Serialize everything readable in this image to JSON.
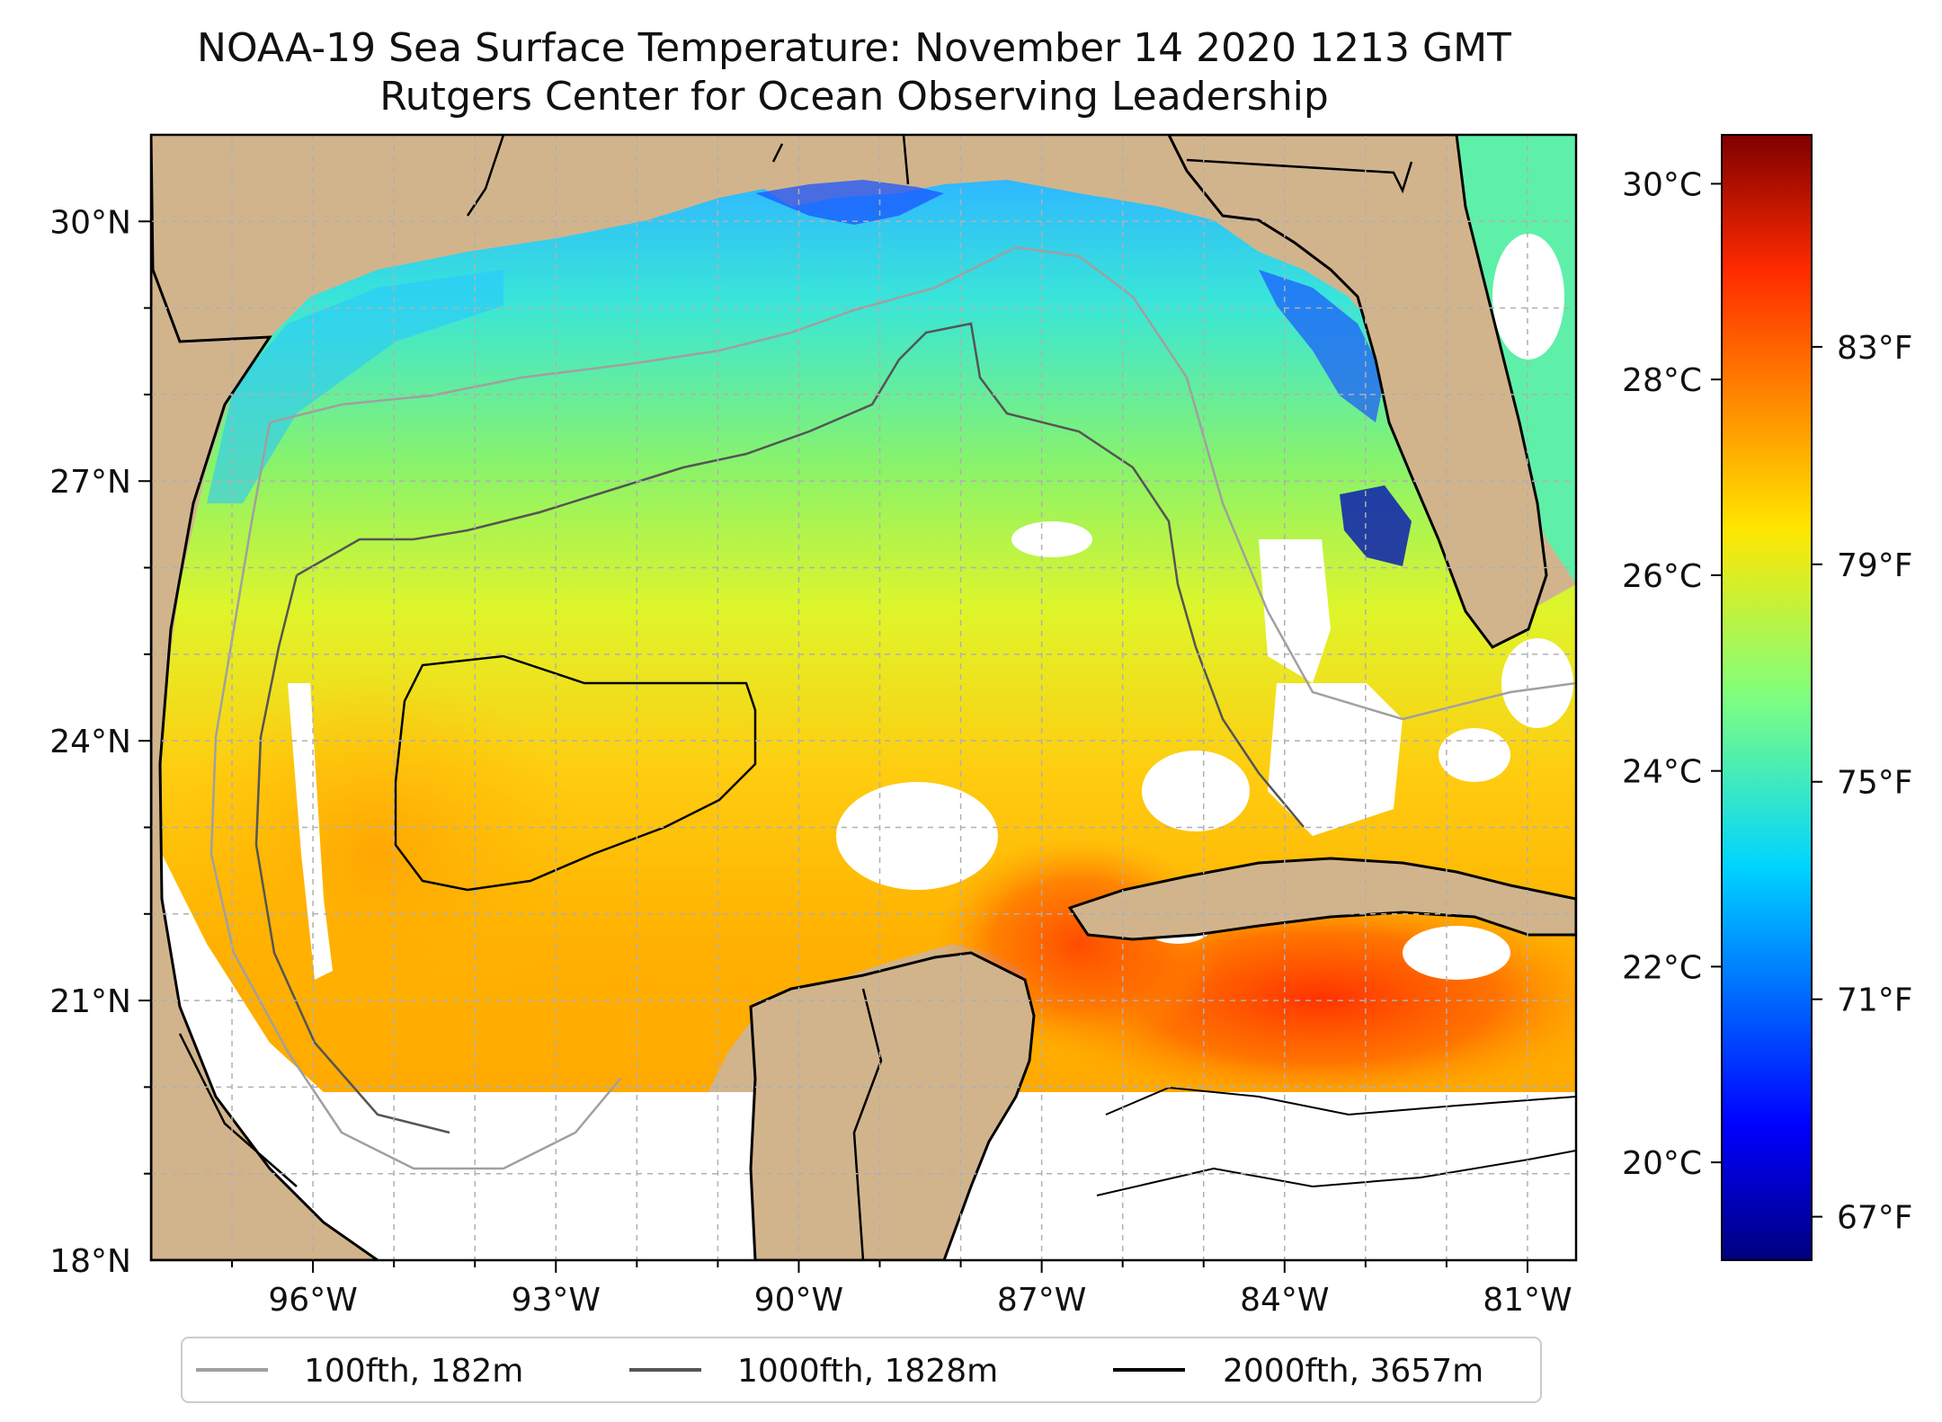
{
  "map": {
    "title": "NOAA-19 Sea Surface Temperature: November 14 2020 1213 GMT",
    "subtitle": "Rutgers Center for Ocean Observing Leadership",
    "lat_labels": [
      "30°N",
      "27°N",
      "24°N",
      "21°N",
      "18°N"
    ],
    "lon_labels": [
      "96°W",
      "93°W",
      "90°W",
      "87°W",
      "84°W",
      "81°W"
    ],
    "extent": {
      "lon_min": -98.0,
      "lon_max": -80.4,
      "lat_min": 18.0,
      "lat_max": 31.0
    },
    "colors": {
      "land": "#d2b48c",
      "coast": "#000000",
      "grid": "#b0b0b0"
    }
  },
  "colorbar": {
    "celsius_labels": [
      "30°C",
      "28°C",
      "26°C",
      "24°C",
      "22°C",
      "20°C"
    ],
    "fahrenheit_labels": [
      "83°F",
      "79°F",
      "75°F",
      "71°F",
      "67°F"
    ],
    "colormap": "jet"
  },
  "legend": {
    "items": [
      {
        "label": "100fth, 182m",
        "color": "#a0a0a0"
      },
      {
        "label": "1000fth, 1828m",
        "color": "#555555"
      },
      {
        "label": "2000fth, 3657m",
        "color": "#000000"
      }
    ]
  }
}
